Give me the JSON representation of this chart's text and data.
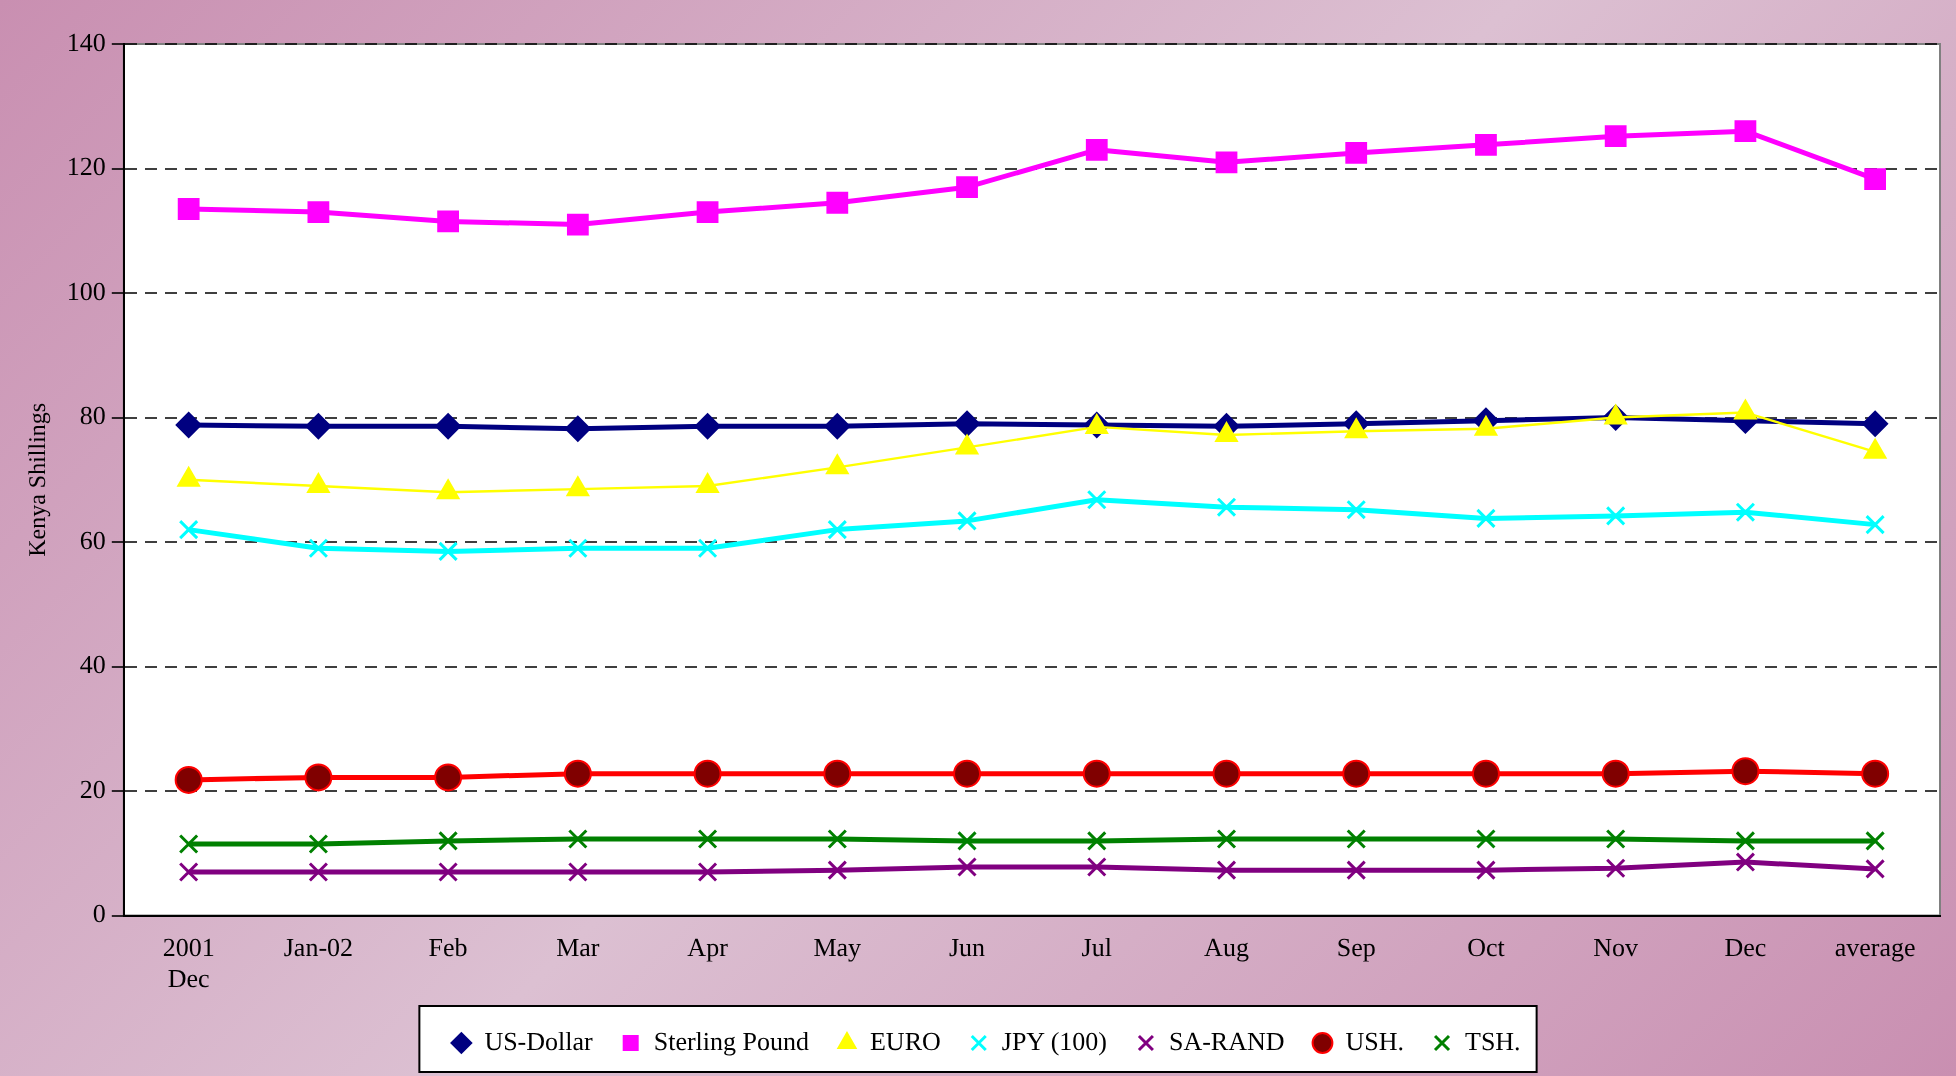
{
  "chart_data": {
    "type": "line",
    "ylabel": "Kenya Shillings",
    "categories": [
      "2001\nDec",
      "Jan-02",
      "Feb",
      "Mar",
      "Apr",
      "May",
      "Jun",
      "Jul",
      "Aug",
      "Sep",
      "Oct",
      "Nov",
      "Dec",
      "average"
    ],
    "ylim": [
      0,
      140
    ],
    "yticks": [
      0,
      20,
      40,
      60,
      80,
      100,
      120,
      140
    ],
    "grid": "y",
    "legend": "bottom",
    "line_style": "solid",
    "series": [
      {
        "name": "US-Dollar",
        "color": "#000080",
        "marker": "diamond",
        "values": [
          78.8,
          78.6,
          78.6,
          78.2,
          78.6,
          78.6,
          79,
          78.8,
          78.6,
          79,
          79.5,
          80,
          79.5,
          79
        ]
      },
      {
        "name": "Sterling Pound",
        "color": "#ff00ff",
        "marker": "square",
        "values": [
          113.5,
          113,
          111.5,
          111,
          113,
          114.5,
          117,
          123,
          121,
          122.5,
          123.8,
          125.2,
          126,
          118.3
        ]
      },
      {
        "name": "EURO",
        "color": "#ffff00",
        "marker": "triangle",
        "values": [
          70,
          69,
          68,
          68.5,
          69,
          72,
          75.2,
          78.5,
          77.2,
          77.8,
          78.2,
          80,
          80.8,
          74.5
        ]
      },
      {
        "name": "JPY (100)",
        "color": "#00ffff",
        "marker": "cross",
        "values": [
          62,
          59,
          58.5,
          59,
          59,
          62,
          63.4,
          66.8,
          65.6,
          65.2,
          63.8,
          64.2,
          64.8,
          62.8
        ]
      },
      {
        "name": "SA-RAND",
        "color": "#800080",
        "marker": "cross",
        "values": [
          7,
          7,
          7,
          7,
          7,
          7.3,
          7.8,
          7.8,
          7.3,
          7.3,
          7.3,
          7.6,
          8.6,
          7.5
        ]
      },
      {
        "name": "USH.",
        "color": "#ff0000",
        "marker": "circle",
        "values": [
          21.8,
          22.2,
          22.2,
          22.8,
          22.8,
          22.8,
          22.8,
          22.8,
          22.8,
          22.8,
          22.8,
          22.8,
          23.2,
          22.8
        ]
      },
      {
        "name": "TSH.",
        "color": "#008000",
        "marker": "cross",
        "values": [
          11.5,
          11.5,
          12,
          12.3,
          12.3,
          12.3,
          12,
          12,
          12.3,
          12.3,
          12.3,
          12.3,
          12,
          12
        ]
      }
    ]
  }
}
